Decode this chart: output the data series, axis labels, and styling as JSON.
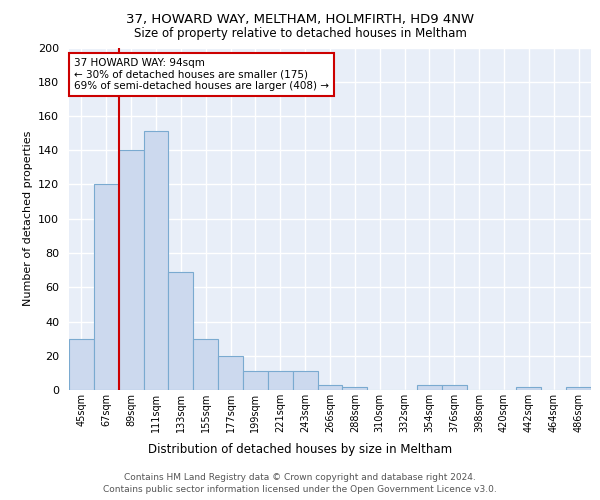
{
  "title1": "37, HOWARD WAY, MELTHAM, HOLMFIRTH, HD9 4NW",
  "title2": "Size of property relative to detached houses in Meltham",
  "xlabel": "Distribution of detached houses by size in Meltham",
  "ylabel": "Number of detached properties",
  "categories": [
    "45sqm",
    "67sqm",
    "89sqm",
    "111sqm",
    "133sqm",
    "155sqm",
    "177sqm",
    "199sqm",
    "221sqm",
    "243sqm",
    "266sqm",
    "288sqm",
    "310sqm",
    "332sqm",
    "354sqm",
    "376sqm",
    "398sqm",
    "420sqm",
    "442sqm",
    "464sqm",
    "486sqm"
  ],
  "values": [
    30,
    120,
    140,
    151,
    69,
    30,
    20,
    11,
    11,
    11,
    3,
    2,
    0,
    0,
    3,
    3,
    0,
    0,
    2,
    0,
    2
  ],
  "bar_color": "#ccd9ee",
  "bar_edge_color": "#7aaad0",
  "red_line_x": 1.5,
  "annotation_text": "37 HOWARD WAY: 94sqm\n← 30% of detached houses are smaller (175)\n69% of semi-detached houses are larger (408) →",
  "annotation_box_color": "white",
  "annotation_box_edge_color": "#cc0000",
  "red_line_color": "#cc0000",
  "ylim": [
    0,
    200
  ],
  "yticks": [
    0,
    20,
    40,
    60,
    80,
    100,
    120,
    140,
    160,
    180,
    200
  ],
  "background_color": "#e8eef8",
  "grid_color": "#ffffff",
  "footer1": "Contains HM Land Registry data © Crown copyright and database right 2024.",
  "footer2": "Contains public sector information licensed under the Open Government Licence v3.0."
}
